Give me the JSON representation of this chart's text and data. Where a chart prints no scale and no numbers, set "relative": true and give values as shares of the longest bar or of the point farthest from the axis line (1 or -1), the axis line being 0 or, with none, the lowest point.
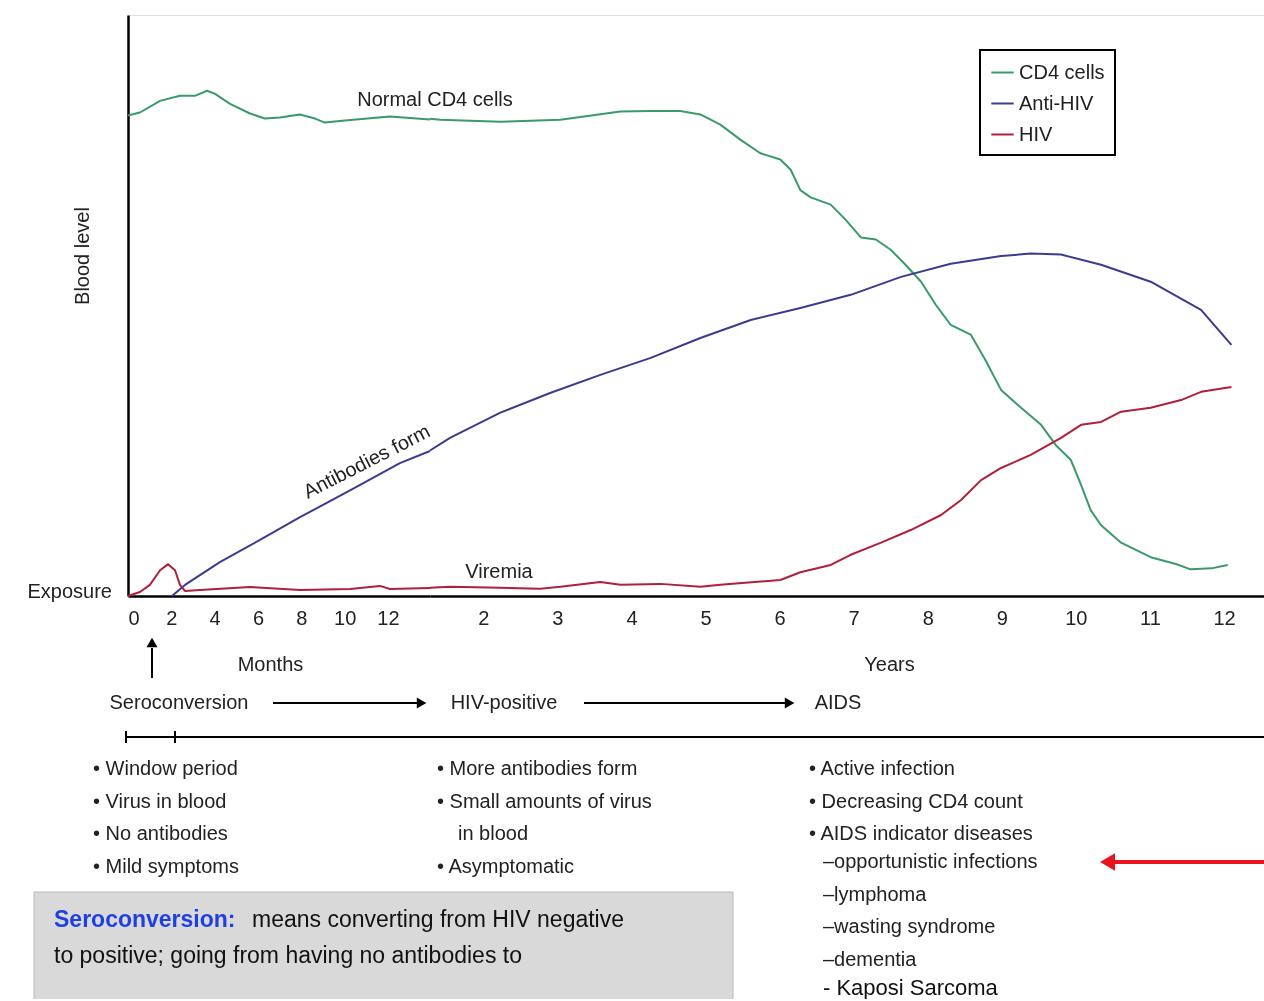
{
  "chart_data": [
    {
      "type": "line",
      "relative": true,
      "ylabel": "Blood level",
      "xlabel": "Months",
      "xlim": [
        0,
        13.94
      ],
      "xticks": [
        0,
        2,
        4,
        6,
        8,
        10,
        12
      ],
      "grid": false,
      "marker": "none",
      "line_style": "solid",
      "series": [
        {
          "color": "#3a9a6a",
          "x": [
            0,
            0.55,
            1.48,
            2.4,
            3.09,
            3.65,
            4.02,
            4.71,
            5.63,
            6.32,
            7.01,
            7.94,
            8.63,
            9.09,
            10.01,
            12.09,
            13.94
          ],
          "values": [
            0.951,
            0.957,
            0.98,
            0.99,
            0.99,
            1,
            0.994,
            0.974,
            0.955,
            0.945,
            0.947,
            0.953,
            0.945,
            0.937,
            0.941,
            0.949,
            0.943
          ]
        },
        {
          "color": "#3b3b8f",
          "x": [
            2.03,
            2.63,
            4.24,
            6.09,
            7.94,
            10.25,
            12.55,
            13.94
          ],
          "values": [
            0,
            0.022,
            0.067,
            0.111,
            0.156,
            0.209,
            0.263,
            0.287
          ]
        },
        {
          "color": "#b0203d",
          "x": [
            0,
            0.55,
            1.01,
            1.48,
            1.85,
            2.17,
            2.4,
            2.63,
            3.32,
            5.63,
            7.94,
            10.25,
            11.63,
            12.09,
            13.94
          ],
          "values": [
            0,
            0.008,
            0.022,
            0.051,
            0.063,
            0.051,
            0.022,
            0.01,
            0.012,
            0.018,
            0.012,
            0.014,
            0.02,
            0.014,
            0.016
          ]
        }
      ],
      "annotations": [
        "Normal CD4 cells",
        "Antibodies form",
        "Viremia",
        "Exposure",
        "Seroconversion",
        "HIV-positive",
        "AIDS",
        "• Window period",
        "• Virus in blood",
        "• No antibodies",
        "• Mild symptoms",
        "• More antibodies form",
        "• Small amounts of virus",
        "in blood",
        "• Asymptomatic",
        "• Active infection",
        "• Decreasing CD4 count",
        "• AIDS indicator diseases",
        "–opportunistic infections",
        "–lymphoma",
        "–wasting syndrome",
        "–dementia",
        "- Kaposi Sarcoma",
        "Seroconversion:",
        "means converting from HIV negative",
        "to positive; going from having no antibodies to"
      ]
    },
    {
      "type": "line",
      "relative": true,
      "xlabel": "Years",
      "xlim": [
        1.28,
        12.54
      ],
      "xticks": [
        2,
        3,
        4,
        5,
        6,
        7,
        8,
        9,
        10,
        11,
        12
      ],
      "legend": "top right",
      "grid": false,
      "marker": "none",
      "line_style": "solid",
      "series": [
        {
          "name": "CD4 cells",
          "color": "#3a9a6a",
          "x": [
            1.28,
            1.42,
            2.23,
            3.04,
            3.85,
            4.26,
            4.66,
            4.93,
            5.2,
            5.47,
            5.74,
            6.01,
            6.15,
            6.28,
            6.42,
            6.69,
            6.89,
            7.1,
            7.3,
            7.5,
            7.7,
            7.91,
            8.11,
            8.31,
            8.58,
            8.78,
            8.99,
            9.26,
            9.53,
            9.73,
            9.93,
            10.07,
            10.2,
            10.34,
            10.61,
            11.01,
            11.35,
            11.55,
            11.83,
            12.05
          ],
          "values": [
            0.984,
            0.982,
            0.978,
            0.982,
            0.999,
            1,
            1,
            0.993,
            0.972,
            0.941,
            0.913,
            0.9,
            0.879,
            0.837,
            0.822,
            0.807,
            0.776,
            0.739,
            0.735,
            0.714,
            0.683,
            0.648,
            0.6,
            0.559,
            0.539,
            0.486,
            0.425,
            0.388,
            0.353,
            0.311,
            0.281,
            0.229,
            0.177,
            0.146,
            0.11,
            0.08,
            0.066,
            0.055,
            0.057,
            0.064
          ]
        },
        {
          "name": "Anti-HIV",
          "color": "#3b3b8f",
          "x": [
            1.28,
            1.55,
            2.23,
            2.91,
            3.58,
            4.26,
            4.93,
            5.61,
            6.28,
            6.96,
            7.64,
            8.31,
            8.99,
            9.39,
            9.8,
            10.34,
            11.01,
            11.69,
            12.1
          ],
          "values": [
            0.3,
            0.326,
            0.378,
            0.419,
            0.456,
            0.491,
            0.532,
            0.569,
            0.594,
            0.621,
            0.658,
            0.685,
            0.701,
            0.706,
            0.704,
            0.683,
            0.648,
            0.59,
            0.518
          ]
        },
        {
          "name": "HIV",
          "color": "#b0203d",
          "x": [
            1.28,
            1.55,
            2.23,
            2.77,
            3.04,
            3.58,
            3.85,
            4.39,
            4.93,
            5.2,
            6.01,
            6.28,
            6.69,
            6.96,
            7.37,
            7.77,
            8.18,
            8.45,
            8.72,
            8.99,
            9.39,
            9.8,
            10.07,
            10.34,
            10.61,
            11.01,
            11.42,
            11.69,
            12.1
          ],
          "values": [
            0.017,
            0.019,
            0.017,
            0.015,
            0.019,
            0.029,
            0.023,
            0.025,
            0.019,
            0.023,
            0.033,
            0.049,
            0.064,
            0.085,
            0.11,
            0.136,
            0.167,
            0.198,
            0.239,
            0.264,
            0.291,
            0.326,
            0.353,
            0.359,
            0.38,
            0.388,
            0.404,
            0.421,
            0.431
          ]
        }
      ]
    }
  ]
}
